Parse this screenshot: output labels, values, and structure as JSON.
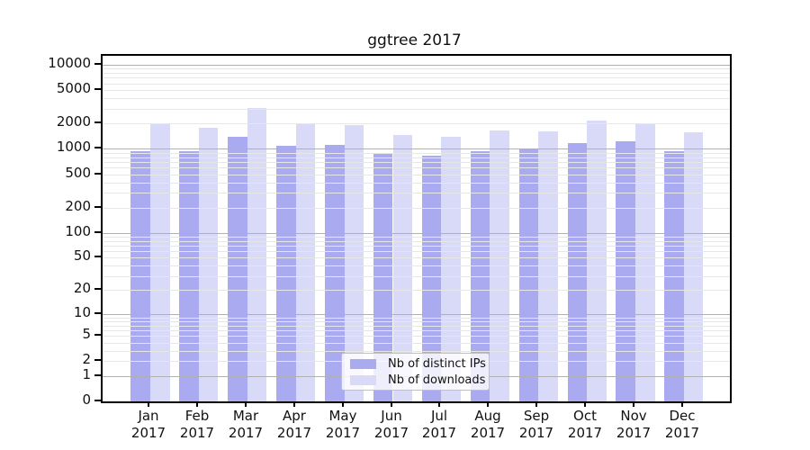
{
  "title": "ggtree 2017",
  "legend": {
    "items": [
      {
        "label": "Nb of distinct IPs",
        "color": "#aaaaf0"
      },
      {
        "label": "Nb of downloads",
        "color": "#d9d9f8"
      }
    ]
  },
  "chart_data": {
    "type": "bar",
    "title": "ggtree 2017",
    "categories": [
      "Jan 2017",
      "Feb 2017",
      "Mar 2017",
      "Apr 2017",
      "May 2017",
      "Jun 2017",
      "Jul 2017",
      "Aug 2017",
      "Sep 2017",
      "Oct 2017",
      "Nov 2017",
      "Dec 2017"
    ],
    "series": [
      {
        "name": "Nb of distinct IPs",
        "color": "#aaaaf0",
        "values": [
          950,
          940,
          1400,
          1090,
          1120,
          900,
          830,
          940,
          1010,
          1170,
          1230,
          940
        ]
      },
      {
        "name": "Nb of downloads",
        "color": "#d9d9f8",
        "values": [
          1950,
          1800,
          3050,
          2000,
          1920,
          1470,
          1400,
          1660,
          1620,
          2170,
          2020,
          1580
        ]
      }
    ],
    "xlabel": "",
    "ylabel": "",
    "yscale": "log10(value+1)",
    "ylim": [
      0,
      12000
    ],
    "yticks": [
      0,
      1,
      2,
      5,
      10,
      20,
      50,
      100,
      200,
      500,
      1000,
      2000,
      5000,
      10000
    ],
    "grid": true,
    "grid_minor_multiples": [
      2,
      3,
      4,
      5,
      6,
      7,
      8,
      9
    ],
    "legend_position": "lower-center-inside",
    "colors": {
      "grid_major": "#b0b0b0",
      "grid_minor": "#e7e7e7",
      "spine": "#000000",
      "background": "#ffffff",
      "text": "#111111"
    }
  }
}
